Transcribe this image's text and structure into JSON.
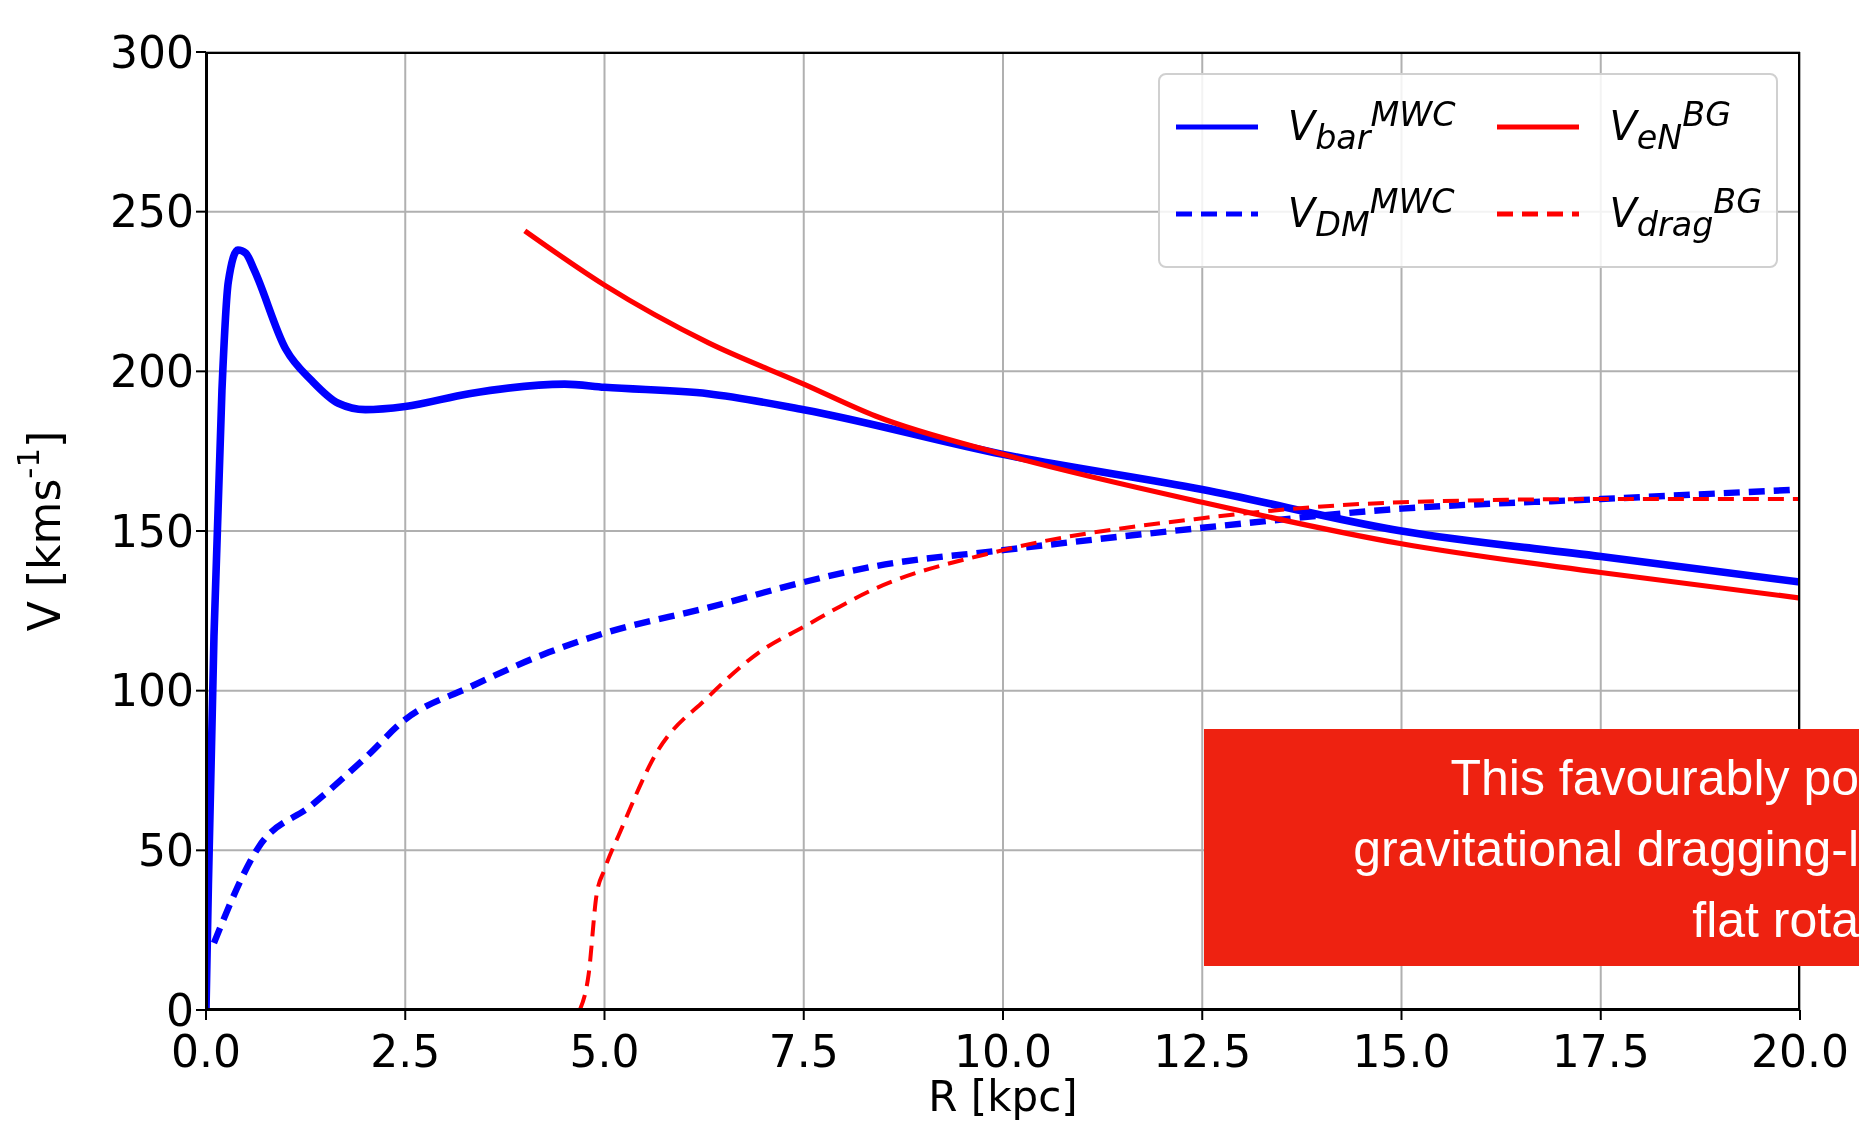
{
  "chart_data": {
    "type": "line",
    "xlabel": "R [kpc]",
    "ylabel": "V [kms$^{-1}$]",
    "xlim": [
      0,
      20
    ],
    "xticks": [
      {
        "value": 0,
        "label": "0.0"
      },
      {
        "value": 2.5,
        "label": "2.5"
      },
      {
        "value": 5,
        "label": "5.0"
      },
      {
        "value": 7.5,
        "label": "7.5"
      },
      {
        "value": 10,
        "label": "10.0"
      },
      {
        "value": 12.5,
        "label": "12.5"
      },
      {
        "value": 15,
        "label": "15.0"
      },
      {
        "value": 17.5,
        "label": "17.5"
      },
      {
        "value": 20,
        "label": "20.0"
      }
    ],
    "ylim": [
      0,
      300
    ],
    "yticks": [
      0,
      50,
      100,
      150,
      200,
      250,
      300
    ],
    "grid": true,
    "legend": "top right",
    "series": [
      {
        "name": "V$_{bar}$$^{MWC}$",
        "color": "#0000ff",
        "line_style": "solid",
        "x": [
          0,
          0.03,
          0.1,
          0.2,
          0.28,
          0.4,
          0.5,
          0.6,
          1.0,
          1.33,
          1.66,
          2.0,
          2.5,
          3.3,
          4.5,
          5.0,
          6.3,
          7.5,
          10,
          12.5,
          15,
          17.5,
          20
        ],
        "values": [
          0,
          39,
          117,
          194,
          228,
          238,
          237,
          232,
          207,
          197,
          190,
          188,
          189,
          193,
          196,
          195,
          193,
          188,
          174,
          163,
          150,
          142,
          134
        ]
      },
      {
        "name": "V$_{DM}$$^{MWC}$",
        "color": "#0000ff",
        "line_style": "dashed",
        "x": [
          0.1,
          0.66,
          1.32,
          2.0,
          2.5,
          3.3,
          4.3,
          5.0,
          6.3,
          7.5,
          8.4,
          10,
          12.5,
          15,
          17.5,
          20
        ],
        "values": [
          21,
          51,
          64,
          79,
          91,
          101,
          112,
          118,
          126,
          134,
          139,
          144,
          151,
          157,
          160,
          163
        ]
      },
      {
        "name": "V$_{eN}$$^{BG}$",
        "color": "#ff0000",
        "line_style": "solid",
        "x": [
          4.0,
          5.0,
          6.3,
          7.5,
          8.4,
          10,
          12.5,
          15,
          17.5,
          20
        ],
        "values": [
          244,
          227,
          209,
          196,
          186,
          174,
          159,
          146,
          137,
          129
        ]
      },
      {
        "name": "V$_{drag}$$^{BG}$",
        "color": "#ff0000",
        "line_style": "dashed",
        "x": [
          4.69,
          4.8,
          4.9,
          5.0,
          5.2,
          5.64,
          6.3,
          6.94,
          7.5,
          8.4,
          10,
          12.5,
          15,
          17.5,
          20
        ],
        "values": [
          0,
          11,
          36,
          44,
          56,
          80,
          98,
          112,
          120,
          132,
          144,
          154,
          159,
          160,
          160
        ]
      }
    ],
    "annotations": [
      "This favourably po\ngravitational dragging-l\nflat rota"
    ]
  }
}
